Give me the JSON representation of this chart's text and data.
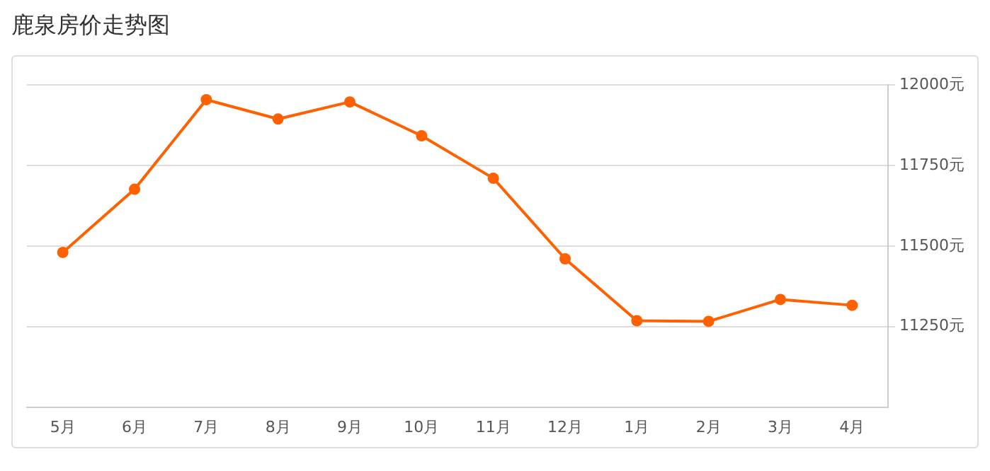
{
  "chart_data": {
    "type": "line",
    "title": "鹿泉房价走势图",
    "categories": [
      "5月",
      "6月",
      "7月",
      "8月",
      "9月",
      "10月",
      "11月",
      "12月",
      "1月",
      "2月",
      "3月",
      "4月"
    ],
    "series": [
      {
        "color": "#ff6000",
        "values": [
          11480,
          11676,
          11954,
          11894,
          11947,
          11842,
          11710,
          11460,
          11268,
          11266,
          11334,
          11316
        ]
      }
    ],
    "ylim": [
      11000,
      12000
    ],
    "yticks": [
      {
        "value": 11250,
        "label": "11250元"
      },
      {
        "value": 11500,
        "label": "11500元"
      },
      {
        "value": 11750,
        "label": "11750元"
      },
      {
        "value": 12000,
        "label": "12000元"
      }
    ],
    "grid": "y",
    "legend": false,
    "marker": "circle",
    "line_style": "solid"
  }
}
